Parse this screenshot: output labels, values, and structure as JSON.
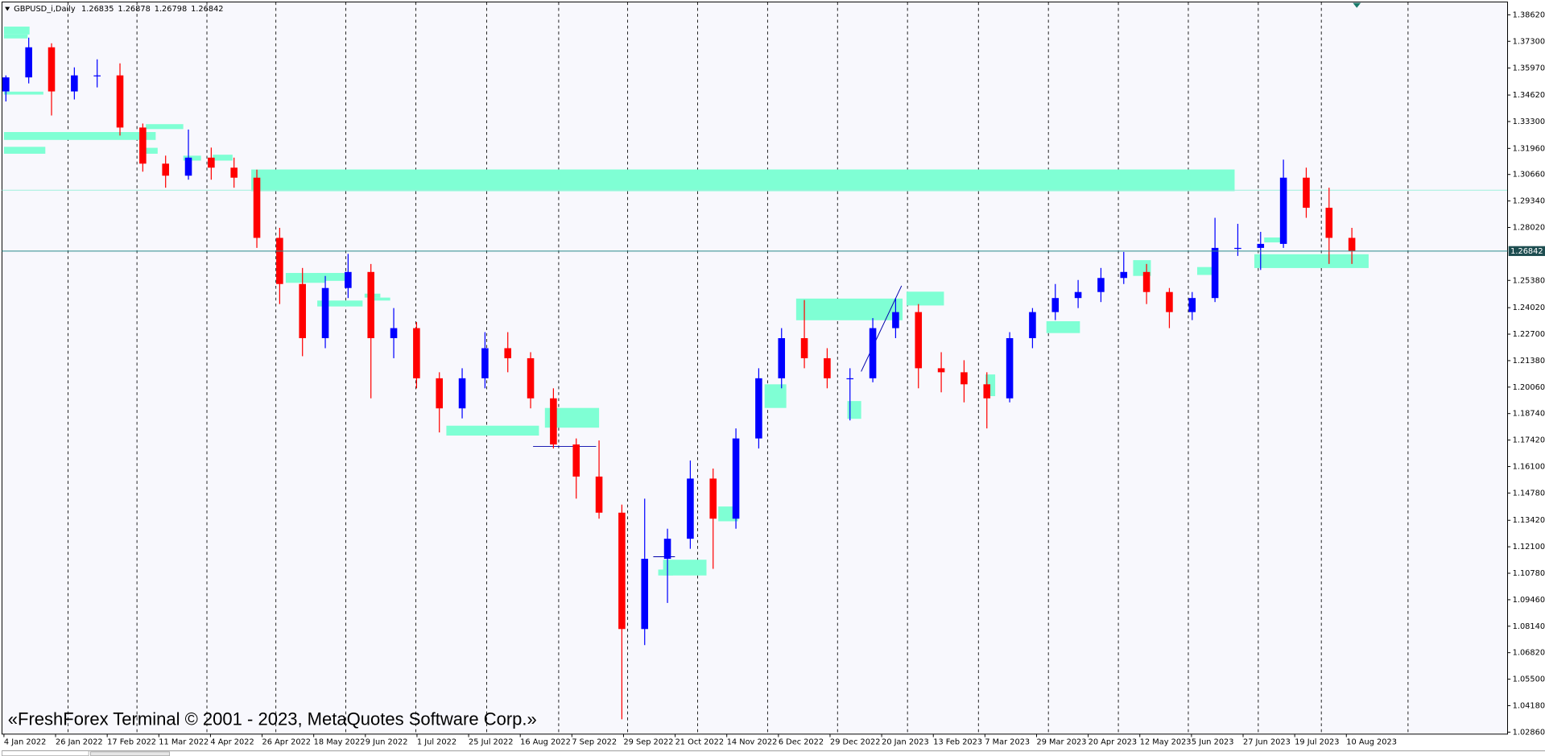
{
  "chart_data": {
    "type": "candlestick",
    "title": "GBPUSD_i,Daily",
    "header_values": [
      1.26835,
      1.26878,
      1.26798,
      1.26842
    ],
    "watermark": "«FreshForex Terminal © 2001 - 2023, MetaQuotes Software Corp.»",
    "up_color": "#0000ff",
    "down_color": "#ff0000",
    "current_price": 1.26842,
    "ylim": [
      1.0276,
      1.3926
    ],
    "yticks": [
      {
        "value": 1.3862,
        "label": "1.38620"
      },
      {
        "value": 1.373,
        "label": "1.37300"
      },
      {
        "value": 1.3597,
        "label": "1.35970"
      },
      {
        "value": 1.3462,
        "label": "1.34620"
      },
      {
        "value": 1.333,
        "label": "1.33300"
      },
      {
        "value": 1.3196,
        "label": "1.31960"
      },
      {
        "value": 1.3066,
        "label": "1.30660"
      },
      {
        "value": 1.2934,
        "label": "1.29340"
      },
      {
        "value": 1.2802,
        "label": "1.28020"
      },
      {
        "value": 1.2538,
        "label": "1.25380"
      },
      {
        "value": 1.2402,
        "label": "1.24020"
      },
      {
        "value": 1.227,
        "label": "1.22700"
      },
      {
        "value": 1.2138,
        "label": "1.21380"
      },
      {
        "value": 1.2006,
        "label": "1.20060"
      },
      {
        "value": 1.1874,
        "label": "1.18740"
      },
      {
        "value": 1.1742,
        "label": "1.17420"
      },
      {
        "value": 1.161,
        "label": "1.16100"
      },
      {
        "value": 1.1478,
        "label": "1.14780"
      },
      {
        "value": 1.1342,
        "label": "1.13420"
      },
      {
        "value": 1.121,
        "label": "1.12100"
      },
      {
        "value": 1.1078,
        "label": "1.10780"
      },
      {
        "value": 1.0946,
        "label": "1.09460"
      },
      {
        "value": 1.0814,
        "label": "1.08140"
      },
      {
        "value": 1.0682,
        "label": "1.06820"
      },
      {
        "value": 1.055,
        "label": "1.05500"
      },
      {
        "value": 1.0418,
        "label": "1.04180"
      },
      {
        "value": 1.0286,
        "label": "1.02860"
      }
    ],
    "x_labels": [
      "4 Jan 2022",
      "26 Jan 2022",
      "17 Feb 2022",
      "11 Mar 2022",
      "4 Apr 2022",
      "26 Apr 2022",
      "18 May 2022",
      "9 Jun 2022",
      "1 Jul 2022",
      "25 Jul 2022",
      "16 Aug 2022",
      "7 Sep 2022",
      "29 Sep 2022",
      "21 Oct 2022",
      "14 Nov 2022",
      "6 Dec 2022",
      "29 Dec 2022",
      "20 Jan 2023",
      "13 Feb 2023",
      "7 Mar 2023",
      "29 Mar 2023",
      "20 Apr 2023",
      "12 May 2023",
      "5 Jun 2023",
      "27 Jun 2023",
      "19 Jul 2023",
      "10 Aug 2023"
    ],
    "candles": [
      [
        1.348,
        1.356,
        1.343,
        1.355
      ],
      [
        1.355,
        1.3748,
        1.352,
        1.37
      ],
      [
        1.37,
        1.372,
        1.336,
        1.348
      ],
      [
        1.348,
        1.36,
        1.344,
        1.356
      ],
      [
        1.356,
        1.364,
        1.35,
        1.356
      ],
      [
        1.356,
        1.362,
        1.326,
        1.33
      ],
      [
        1.33,
        1.332,
        1.308,
        1.312
      ],
      [
        1.312,
        1.316,
        1.3,
        1.306
      ],
      [
        1.306,
        1.329,
        1.304,
        1.315
      ],
      [
        1.315,
        1.32,
        1.304,
        1.31
      ],
      [
        1.31,
        1.315,
        1.3,
        1.305
      ],
      [
        1.305,
        1.309,
        1.27,
        1.275
      ],
      [
        1.275,
        1.28,
        1.242,
        1.252
      ],
      [
        1.252,
        1.26,
        1.216,
        1.225
      ],
      [
        1.225,
        1.256,
        1.22,
        1.25
      ],
      [
        1.25,
        1.267,
        1.245,
        1.258
      ],
      [
        1.258,
        1.262,
        1.195,
        1.225
      ],
      [
        1.225,
        1.24,
        1.215,
        1.23
      ],
      [
        1.23,
        1.233,
        1.2,
        1.205
      ],
      [
        1.205,
        1.208,
        1.178,
        1.19
      ],
      [
        1.19,
        1.21,
        1.185,
        1.205
      ],
      [
        1.205,
        1.228,
        1.2,
        1.22
      ],
      [
        1.22,
        1.228,
        1.208,
        1.215
      ],
      [
        1.215,
        1.218,
        1.19,
        1.195
      ],
      [
        1.195,
        1.2,
        1.17,
        1.172
      ],
      [
        1.172,
        1.175,
        1.145,
        1.156
      ],
      [
        1.156,
        1.174,
        1.135,
        1.138
      ],
      [
        1.138,
        1.142,
        1.035,
        1.08
      ],
      [
        1.08,
        1.145,
        1.072,
        1.115
      ],
      [
        1.115,
        1.13,
        1.093,
        1.125
      ],
      [
        1.125,
        1.164,
        1.12,
        1.155
      ],
      [
        1.155,
        1.16,
        1.11,
        1.135
      ],
      [
        1.135,
        1.18,
        1.13,
        1.175
      ],
      [
        1.175,
        1.21,
        1.17,
        1.205
      ],
      [
        1.205,
        1.23,
        1.2,
        1.225
      ],
      [
        1.225,
        1.244,
        1.21,
        1.215
      ],
      [
        1.215,
        1.22,
        1.2,
        1.205
      ],
      [
        1.205,
        1.21,
        1.184,
        1.205
      ],
      [
        1.205,
        1.235,
        1.203,
        1.23
      ],
      [
        1.23,
        1.245,
        1.225,
        1.238
      ],
      [
        1.238,
        1.242,
        1.2,
        1.21
      ],
      [
        1.21,
        1.218,
        1.198,
        1.208
      ],
      [
        1.208,
        1.214,
        1.193,
        1.202
      ],
      [
        1.202,
        1.208,
        1.18,
        1.195
      ],
      [
        1.195,
        1.228,
        1.193,
        1.225
      ],
      [
        1.225,
        1.24,
        1.22,
        1.238
      ],
      [
        1.238,
        1.252,
        1.234,
        1.245
      ],
      [
        1.245,
        1.254,
        1.24,
        1.248
      ],
      [
        1.248,
        1.26,
        1.243,
        1.255
      ],
      [
        1.255,
        1.268,
        1.252,
        1.258
      ],
      [
        1.258,
        1.262,
        1.242,
        1.248
      ],
      [
        1.248,
        1.25,
        1.23,
        1.238
      ],
      [
        1.238,
        1.248,
        1.234,
        1.245
      ],
      [
        1.245,
        1.285,
        1.243,
        1.27
      ],
      [
        1.27,
        1.282,
        1.266,
        1.27
      ],
      [
        1.27,
        1.278,
        1.259,
        1.272
      ],
      [
        1.272,
        1.314,
        1.27,
        1.305
      ],
      [
        1.305,
        1.31,
        1.285,
        1.29
      ],
      [
        1.29,
        1.3,
        1.262,
        1.275
      ],
      [
        1.275,
        1.28,
        1.262,
        1.26842
      ]
    ]
  }
}
